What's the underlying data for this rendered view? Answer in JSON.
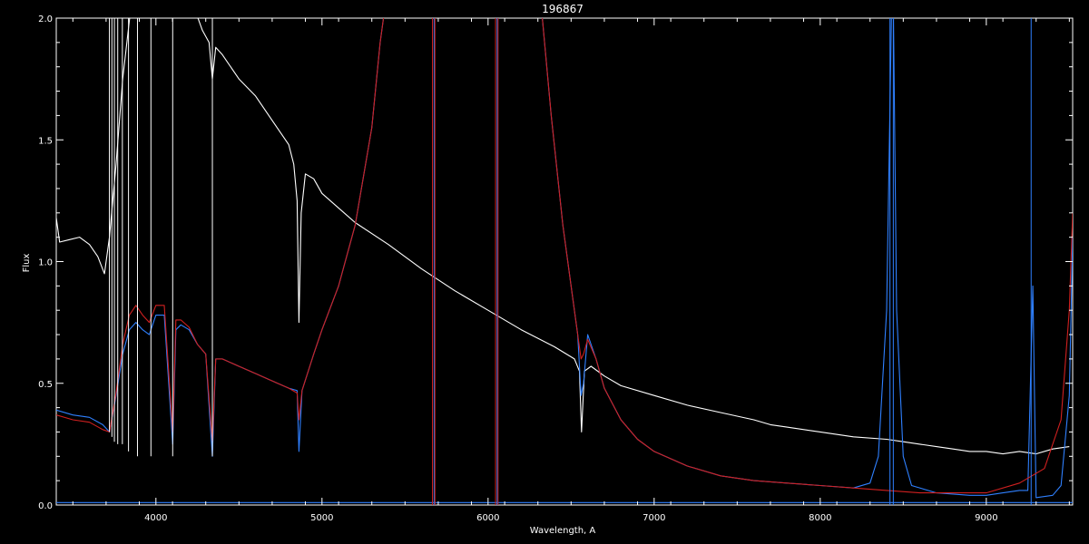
{
  "chart_data": {
    "type": "line",
    "title": "196867",
    "xlabel": "Wavelength, A",
    "ylabel": "Flux",
    "xlim": [
      3400,
      9520
    ],
    "ylim": [
      0,
      2.0
    ],
    "x_ticks": [
      4000,
      5000,
      6000,
      7000,
      8000,
      9000
    ],
    "x_tick_labels": [
      "4000",
      "5000",
      "6000",
      "7000",
      "8000",
      "9000"
    ],
    "y_ticks": [
      0,
      0.5,
      1.0,
      1.5,
      2.0
    ],
    "y_tick_labels": [
      "0.0",
      "0.5",
      "1.0",
      "1.5",
      "2.0"
    ],
    "grid": false,
    "background": "#000000",
    "axis_color": "#ffffff",
    "series": [
      {
        "color": "#ffffff",
        "points": [
          [
            3400,
            1.18
          ],
          [
            3420,
            1.08
          ],
          [
            3480,
            1.09
          ],
          [
            3540,
            1.1
          ],
          [
            3600,
            1.07
          ],
          [
            3650,
            1.02
          ],
          [
            3690,
            0.95
          ],
          [
            3720,
            1.1
          ],
          [
            3760,
            1.4
          ],
          [
            3800,
            1.75
          ],
          [
            3850,
            2.05
          ],
          [
            4000,
            2.1
          ],
          [
            4100,
            2.2
          ],
          [
            4200,
            2.1
          ],
          [
            4280,
            1.95
          ],
          [
            4320,
            1.9
          ],
          [
            4340,
            1.75
          ],
          [
            4360,
            1.88
          ],
          [
            4400,
            1.85
          ],
          [
            4500,
            1.75
          ],
          [
            4600,
            1.68
          ],
          [
            4700,
            1.58
          ],
          [
            4800,
            1.48
          ],
          [
            4830,
            1.4
          ],
          [
            4850,
            1.25
          ],
          [
            4861,
            0.75
          ],
          [
            4875,
            1.2
          ],
          [
            4900,
            1.36
          ],
          [
            4950,
            1.34
          ],
          [
            5000,
            1.28
          ],
          [
            5100,
            1.22
          ],
          [
            5200,
            1.16
          ],
          [
            5400,
            1.07
          ],
          [
            5600,
            0.97
          ],
          [
            5800,
            0.88
          ],
          [
            6000,
            0.8
          ],
          [
            6200,
            0.72
          ],
          [
            6400,
            0.65
          ],
          [
            6520,
            0.6
          ],
          [
            6550,
            0.55
          ],
          [
            6563,
            0.3
          ],
          [
            6580,
            0.55
          ],
          [
            6620,
            0.57
          ],
          [
            6700,
            0.53
          ],
          [
            6800,
            0.49
          ],
          [
            7000,
            0.45
          ],
          [
            7200,
            0.41
          ],
          [
            7400,
            0.38
          ],
          [
            7600,
            0.35
          ],
          [
            7700,
            0.33
          ],
          [
            7800,
            0.32
          ],
          [
            8000,
            0.3
          ],
          [
            8200,
            0.28
          ],
          [
            8400,
            0.27
          ],
          [
            8500,
            0.26
          ],
          [
            8600,
            0.25
          ],
          [
            8700,
            0.24
          ],
          [
            8800,
            0.23
          ],
          [
            8900,
            0.22
          ],
          [
            9000,
            0.22
          ],
          [
            9100,
            0.21
          ],
          [
            9200,
            0.22
          ],
          [
            9300,
            0.21
          ],
          [
            9400,
            0.23
          ],
          [
            9500,
            0.24
          ]
        ]
      },
      {
        "color": "#2f80ff",
        "points": [
          [
            3400,
            0.39
          ],
          [
            3500,
            0.37
          ],
          [
            3600,
            0.36
          ],
          [
            3680,
            0.33
          ],
          [
            3720,
            0.3
          ],
          [
            3760,
            0.45
          ],
          [
            3800,
            0.62
          ],
          [
            3840,
            0.72
          ],
          [
            3880,
            0.75
          ],
          [
            3920,
            0.72
          ],
          [
            3960,
            0.7
          ],
          [
            4000,
            0.78
          ],
          [
            4050,
            0.78
          ],
          [
            4101,
            0.25
          ],
          [
            4120,
            0.72
          ],
          [
            4150,
            0.74
          ],
          [
            4200,
            0.72
          ],
          [
            4250,
            0.66
          ],
          [
            4300,
            0.62
          ],
          [
            4340,
            0.2
          ],
          [
            4360,
            0.6
          ],
          [
            4400,
            0.6
          ],
          [
            4500,
            0.57
          ],
          [
            4600,
            0.54
          ],
          [
            4700,
            0.51
          ],
          [
            4800,
            0.48
          ],
          [
            4850,
            0.47
          ],
          [
            4861,
            0.22
          ],
          [
            4880,
            0.47
          ],
          [
            4950,
            0.62
          ],
          [
            5000,
            0.72
          ],
          [
            5100,
            0.9
          ],
          [
            5200,
            1.15
          ],
          [
            5300,
            1.55
          ],
          [
            5350,
            1.9
          ],
          [
            5380,
            2.05
          ]
        ]
      },
      {
        "color": "#2f80ff",
        "points": [
          [
            6320,
            2.05
          ],
          [
            6380,
            1.6
          ],
          [
            6450,
            1.15
          ],
          [
            6500,
            0.9
          ],
          [
            6540,
            0.7
          ],
          [
            6560,
            0.45
          ],
          [
            6575,
            0.5
          ],
          [
            6600,
            0.7
          ],
          [
            6650,
            0.6
          ],
          [
            6700,
            0.48
          ],
          [
            6800,
            0.35
          ],
          [
            6900,
            0.27
          ],
          [
            7000,
            0.22
          ],
          [
            7200,
            0.16
          ],
          [
            7400,
            0.12
          ],
          [
            7600,
            0.1
          ],
          [
            7800,
            0.09
          ],
          [
            8000,
            0.08
          ],
          [
            8200,
            0.07
          ],
          [
            8300,
            0.09
          ],
          [
            8350,
            0.2
          ],
          [
            8400,
            0.8
          ],
          [
            8430,
            2.05
          ],
          [
            8440,
            2.05
          ],
          [
            8460,
            0.8
          ],
          [
            8500,
            0.2
          ],
          [
            8550,
            0.08
          ],
          [
            8700,
            0.05
          ],
          [
            8900,
            0.04
          ],
          [
            9000,
            0.04
          ],
          [
            9100,
            0.05
          ],
          [
            9200,
            0.06
          ],
          [
            9250,
            0.06
          ],
          [
            9280,
            0.9
          ],
          [
            9300,
            0.03
          ],
          [
            9400,
            0.04
          ],
          [
            9450,
            0.08
          ],
          [
            9500,
            0.45
          ],
          [
            9520,
            1.1
          ]
        ]
      },
      {
        "color": "#d02020",
        "points": [
          [
            3400,
            0.37
          ],
          [
            3500,
            0.35
          ],
          [
            3600,
            0.34
          ],
          [
            3680,
            0.31
          ],
          [
            3720,
            0.3
          ],
          [
            3760,
            0.46
          ],
          [
            3800,
            0.66
          ],
          [
            3840,
            0.78
          ],
          [
            3880,
            0.82
          ],
          [
            3920,
            0.78
          ],
          [
            3960,
            0.75
          ],
          [
            4000,
            0.82
          ],
          [
            4050,
            0.82
          ],
          [
            4101,
            0.3
          ],
          [
            4120,
            0.76
          ],
          [
            4150,
            0.76
          ],
          [
            4200,
            0.73
          ],
          [
            4250,
            0.66
          ],
          [
            4300,
            0.62
          ],
          [
            4340,
            0.26
          ],
          [
            4360,
            0.6
          ],
          [
            4400,
            0.6
          ],
          [
            4500,
            0.57
          ],
          [
            4600,
            0.54
          ],
          [
            4700,
            0.51
          ],
          [
            4800,
            0.48
          ],
          [
            4850,
            0.46
          ],
          [
            4861,
            0.35
          ],
          [
            4880,
            0.47
          ],
          [
            4950,
            0.62
          ],
          [
            5000,
            0.72
          ],
          [
            5100,
            0.9
          ],
          [
            5200,
            1.15
          ],
          [
            5300,
            1.55
          ],
          [
            5350,
            1.9
          ],
          [
            5380,
            2.05
          ]
        ]
      },
      {
        "color": "#d02020",
        "points": [
          [
            6320,
            2.05
          ],
          [
            6380,
            1.6
          ],
          [
            6450,
            1.15
          ],
          [
            6500,
            0.9
          ],
          [
            6540,
            0.7
          ],
          [
            6560,
            0.6
          ],
          [
            6575,
            0.62
          ],
          [
            6600,
            0.68
          ],
          [
            6650,
            0.6
          ],
          [
            6700,
            0.48
          ],
          [
            6800,
            0.35
          ],
          [
            6900,
            0.27
          ],
          [
            7000,
            0.22
          ],
          [
            7200,
            0.16
          ],
          [
            7400,
            0.12
          ],
          [
            7600,
            0.1
          ],
          [
            7800,
            0.09
          ],
          [
            8000,
            0.08
          ],
          [
            8200,
            0.07
          ],
          [
            8400,
            0.06
          ],
          [
            8600,
            0.05
          ],
          [
            8800,
            0.05
          ],
          [
            9000,
            0.05
          ],
          [
            9200,
            0.09
          ],
          [
            9350,
            0.15
          ],
          [
            9450,
            0.35
          ],
          [
            9500,
            0.8
          ],
          [
            9520,
            1.2
          ]
        ]
      },
      {
        "color": "#2f80ff",
        "points": [
          [
            3400,
            0.01
          ],
          [
            3600,
            0.01
          ],
          [
            3800,
            0.01
          ],
          [
            4000,
            0.01
          ],
          [
            4200,
            0.01
          ],
          [
            4400,
            0.01
          ],
          [
            4600,
            0.01
          ],
          [
            4800,
            0.01
          ],
          [
            5000,
            0.01
          ],
          [
            5200,
            0.01
          ],
          [
            5400,
            0.01
          ],
          [
            5600,
            0.01
          ],
          [
            5800,
            0.01
          ],
          [
            6000,
            0.01
          ],
          [
            6200,
            0.01
          ],
          [
            6400,
            0.01
          ],
          [
            6600,
            0.01
          ],
          [
            6800,
            0.01
          ],
          [
            7000,
            0.01
          ],
          [
            7200,
            0.01
          ],
          [
            7400,
            0.01
          ],
          [
            7600,
            0.01
          ],
          [
            7800,
            0.01
          ],
          [
            8000,
            0.01
          ],
          [
            8200,
            0.01
          ],
          [
            8400,
            0.01
          ],
          [
            8600,
            0.01
          ],
          [
            8800,
            0.01
          ],
          [
            9000,
            0.01
          ],
          [
            9200,
            0.01
          ],
          [
            9400,
            0.01
          ],
          [
            9520,
            0.01
          ]
        ]
      }
    ],
    "vertical_lines": [
      {
        "x": 5665,
        "color": "#d02020"
      },
      {
        "x": 5675,
        "color": "#2f80ff"
      },
      {
        "x": 5680,
        "color": "#d02020"
      },
      {
        "x": 6045,
        "color": "#d02020"
      },
      {
        "x": 6055,
        "color": "#2f80ff"
      },
      {
        "x": 6060,
        "color": "#d02020"
      },
      {
        "x": 8420,
        "color": "#2f80ff"
      },
      {
        "x": 8440,
        "color": "#2f80ff"
      },
      {
        "x": 9270,
        "color": "#2f80ff"
      }
    ],
    "absorption_spikes_white": [
      {
        "x": 3720,
        "y": 0.3
      },
      {
        "x": 3735,
        "y": 0.28
      },
      {
        "x": 3750,
        "y": 0.26
      },
      {
        "x": 3770,
        "y": 0.25
      },
      {
        "x": 3798,
        "y": 0.25
      },
      {
        "x": 3835,
        "y": 0.22
      },
      {
        "x": 3889,
        "y": 0.2
      },
      {
        "x": 3970,
        "y": 0.2
      },
      {
        "x": 4101,
        "y": 0.2
      },
      {
        "x": 4340,
        "y": 0.2
      }
    ]
  }
}
